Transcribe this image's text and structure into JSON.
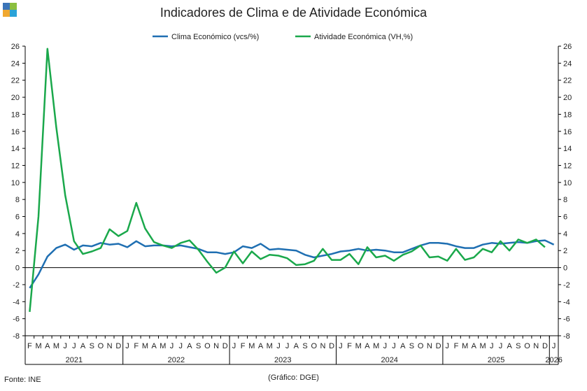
{
  "title": "Indicadores de Clima e de Atividade Económica",
  "source": "Fonte: INE",
  "credit": "(Gráfico: DGE)",
  "logo_colors": [
    "#3a74b8",
    "#8bbf3f",
    "#f0a830",
    "#2aa3d8"
  ],
  "chart_data": {
    "type": "line",
    "title": "Indicadores de Clima e de Atividade Económica",
    "legend_position": "top",
    "grid": false,
    "ylim": [
      -8,
      26
    ],
    "y_ticks": [
      -8,
      -6,
      -4,
      -2,
      0,
      2,
      4,
      6,
      8,
      10,
      12,
      14,
      16,
      18,
      20,
      22,
      24,
      26
    ],
    "y2_ticks": [
      -8,
      -6,
      -4,
      -2,
      0,
      2,
      4,
      6,
      8,
      10,
      12,
      14,
      16,
      18,
      20,
      22,
      24,
      26
    ],
    "month_labels": [
      "F",
      "M",
      "A",
      "M",
      "J",
      "J",
      "A",
      "S",
      "O",
      "N",
      "D",
      "J",
      "F",
      "M",
      "A",
      "M",
      "J",
      "J",
      "A",
      "S",
      "O",
      "N",
      "D",
      "J",
      "F",
      "M",
      "A",
      "M",
      "J",
      "J",
      "A",
      "S",
      "O",
      "N",
      "D",
      "J",
      "F",
      "M",
      "A",
      "M",
      "J",
      "J",
      "A",
      "S",
      "O",
      "N",
      "D",
      "J",
      "F",
      "M",
      "A",
      "M",
      "J",
      "J",
      "A",
      "S",
      "O",
      "N",
      "D",
      "J"
    ],
    "year_labels": [
      {
        "label": "2021",
        "first_month": 0,
        "last_month": 10
      },
      {
        "label": "2022",
        "first_month": 11,
        "last_month": 22
      },
      {
        "label": "2023",
        "first_month": 23,
        "last_month": 34
      },
      {
        "label": "2024",
        "first_month": 35,
        "last_month": 46
      },
      {
        "label": "2025",
        "first_month": 47,
        "last_month": 58
      },
      {
        "label": "2026",
        "first_month": 59,
        "last_month": 59
      }
    ],
    "series": [
      {
        "name": "Clima Económico (vcs/%)",
        "color": "#1f6fb2",
        "values": [
          -2.4,
          -0.8,
          1.3,
          2.3,
          2.7,
          2.1,
          2.6,
          2.5,
          2.9,
          2.7,
          2.8,
          2.4,
          3.1,
          2.5,
          2.6,
          2.6,
          2.5,
          2.6,
          2.4,
          2.2,
          1.8,
          1.8,
          1.6,
          1.8,
          2.5,
          2.3,
          2.8,
          2.1,
          2.2,
          2.1,
          2.0,
          1.5,
          1.2,
          1.4,
          1.6,
          1.9,
          2.0,
          2.2,
          2.0,
          2.1,
          2.0,
          1.8,
          1.8,
          2.2,
          2.6,
          2.9,
          2.9,
          2.8,
          2.5,
          2.3,
          2.3,
          2.7,
          2.9,
          2.8,
          2.9,
          3.0,
          2.9,
          3.1,
          3.2,
          2.7
        ]
      },
      {
        "name": "Atividade Económica (VH,%)",
        "color": "#1aa84b",
        "values": [
          -5.2,
          6.0,
          25.7,
          16.5,
          8.5,
          3.1,
          1.6,
          1.9,
          2.3,
          4.5,
          3.7,
          4.3,
          7.6,
          4.6,
          3.0,
          2.6,
          2.3,
          2.9,
          3.2,
          2.1,
          0.7,
          -0.6,
          0.0,
          1.9,
          0.5,
          1.9,
          1.0,
          1.5,
          1.4,
          1.1,
          0.3,
          0.4,
          0.8,
          2.2,
          0.9,
          0.9,
          1.6,
          0.4,
          2.4,
          1.2,
          1.4,
          0.8,
          1.5,
          1.9,
          2.6,
          1.2,
          1.3,
          0.8,
          2.2,
          0.9,
          1.2,
          2.2,
          1.8,
          3.1,
          2.0,
          3.3,
          2.9,
          3.3,
          2.4
        ]
      }
    ]
  }
}
